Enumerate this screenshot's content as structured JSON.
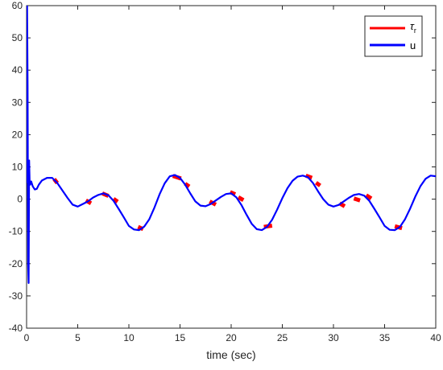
{
  "chart_data": {
    "type": "line",
    "title": "",
    "xlabel": "time (sec)",
    "ylabel": "",
    "xlim": [
      0,
      40
    ],
    "ylim": [
      -40,
      60
    ],
    "xticks": [
      "0",
      "5",
      "10",
      "15",
      "20",
      "25",
      "30",
      "35",
      "40"
    ],
    "yticks": [
      "-40",
      "-30",
      "-20",
      "-10",
      "0",
      "10",
      "20",
      "30",
      "40",
      "50",
      "60"
    ],
    "grid": false,
    "legend_position": "top-right",
    "legend": {
      "tau_main": "τ",
      "tau_sub": "r",
      "u": "u"
    },
    "series": [
      {
        "name": "τr",
        "color": "#ff0000",
        "style": "segments",
        "segments": [
          [
            [
              2.7,
              6.2
            ],
            [
              3.0,
              5.0
            ]
          ],
          [
            [
              5.8,
              -0.4
            ],
            [
              6.3,
              -1.3
            ]
          ],
          [
            [
              7.4,
              1.8
            ],
            [
              8.0,
              1.0
            ]
          ],
          [
            [
              8.5,
              0.1
            ],
            [
              8.9,
              -0.8
            ]
          ],
          [
            [
              10.9,
              -8.6
            ],
            [
              11.4,
              -9.3
            ]
          ],
          [
            [
              14.3,
              7.2
            ],
            [
              15.1,
              6.4
            ]
          ],
          [
            [
              15.5,
              4.8
            ],
            [
              15.9,
              3.9
            ]
          ],
          [
            [
              17.9,
              -0.7
            ],
            [
              18.5,
              -1.7
            ]
          ],
          [
            [
              19.9,
              2.2
            ],
            [
              20.4,
              1.5
            ]
          ],
          [
            [
              20.7,
              0.6
            ],
            [
              21.2,
              -0.3
            ]
          ],
          [
            [
              23.2,
              -8.6
            ],
            [
              24.0,
              -8.2
            ]
          ],
          [
            [
              27.3,
              7.3
            ],
            [
              27.9,
              6.6
            ]
          ],
          [
            [
              28.3,
              5.1
            ],
            [
              28.7,
              4.2
            ]
          ],
          [
            [
              30.6,
              -1.3
            ],
            [
              31.1,
              -2.2
            ]
          ],
          [
            [
              32.0,
              0.2
            ],
            [
              32.6,
              -0.4
            ]
          ],
          [
            [
              33.2,
              1.2
            ],
            [
              33.7,
              0.2
            ]
          ],
          [
            [
              36.0,
              -8.4
            ],
            [
              36.7,
              -9.0
            ]
          ]
        ]
      },
      {
        "name": "u",
        "color": "#0000ff",
        "style": "line",
        "x": [
          0,
          0.05,
          0.1,
          0.15,
          0.2,
          0.25,
          0.3,
          0.35,
          0.4,
          0.45,
          0.5,
          0.6,
          0.8,
          1.0,
          1.2,
          1.5,
          2.0,
          2.5,
          3.0,
          3.5,
          4.0,
          4.5,
          5.0,
          5.5,
          6.0,
          6.5,
          7.0,
          7.5,
          8.0,
          8.5,
          9.0,
          9.5,
          10.0,
          10.5,
          11.0,
          11.5,
          12.0,
          12.5,
          13.0,
          13.5,
          14.0,
          14.5,
          15.0,
          15.5,
          16.0,
          16.5,
          17.0,
          17.5,
          18.0,
          18.5,
          19.0,
          19.5,
          20.0,
          20.5,
          21.0,
          21.5,
          22.0,
          22.5,
          23.0,
          23.5,
          24.0,
          24.5,
          25.0,
          25.5,
          26.0,
          26.5,
          27.0,
          27.5,
          28.0,
          28.5,
          29.0,
          29.5,
          30.0,
          30.5,
          31.0,
          31.5,
          32.0,
          32.5,
          33.0,
          33.5,
          34.0,
          34.5,
          35.0,
          35.5,
          36.0,
          36.5,
          37.0,
          37.5,
          38.0,
          38.5,
          39.0,
          39.5,
          40.0
        ],
        "y": [
          5,
          60,
          35,
          -20,
          -26,
          12,
          5,
          4.5,
          5,
          5.5,
          5,
          4,
          3,
          3.2,
          4.5,
          5.8,
          6.6,
          6.6,
          5.0,
          2.7,
          0.4,
          -1.7,
          -2.3,
          -1.5,
          -0.7,
          0.5,
          1.3,
          1.8,
          1.2,
          -0.5,
          -3.0,
          -5.6,
          -8.3,
          -9.4,
          -9.6,
          -8.5,
          -6.2,
          -2.6,
          1.5,
          4.9,
          7.1,
          7.5,
          6.6,
          4.5,
          1.8,
          -0.7,
          -2.0,
          -2.2,
          -1.5,
          -0.4,
          0.7,
          1.6,
          1.8,
          0.6,
          -1.8,
          -4.8,
          -7.6,
          -9.3,
          -9.6,
          -8.6,
          -6.4,
          -3.2,
          0.3,
          3.4,
          5.7,
          7.0,
          7.3,
          6.8,
          5.0,
          2.4,
          0.0,
          -1.7,
          -2.3,
          -1.8,
          -0.7,
          0.4,
          1.3,
          1.6,
          1.1,
          -0.5,
          -3.0,
          -5.6,
          -8.3,
          -9.5,
          -9.6,
          -8.6,
          -6.2,
          -2.9,
          0.8,
          4.0,
          6.3,
          7.3,
          7.1
        ]
      }
    ]
  }
}
